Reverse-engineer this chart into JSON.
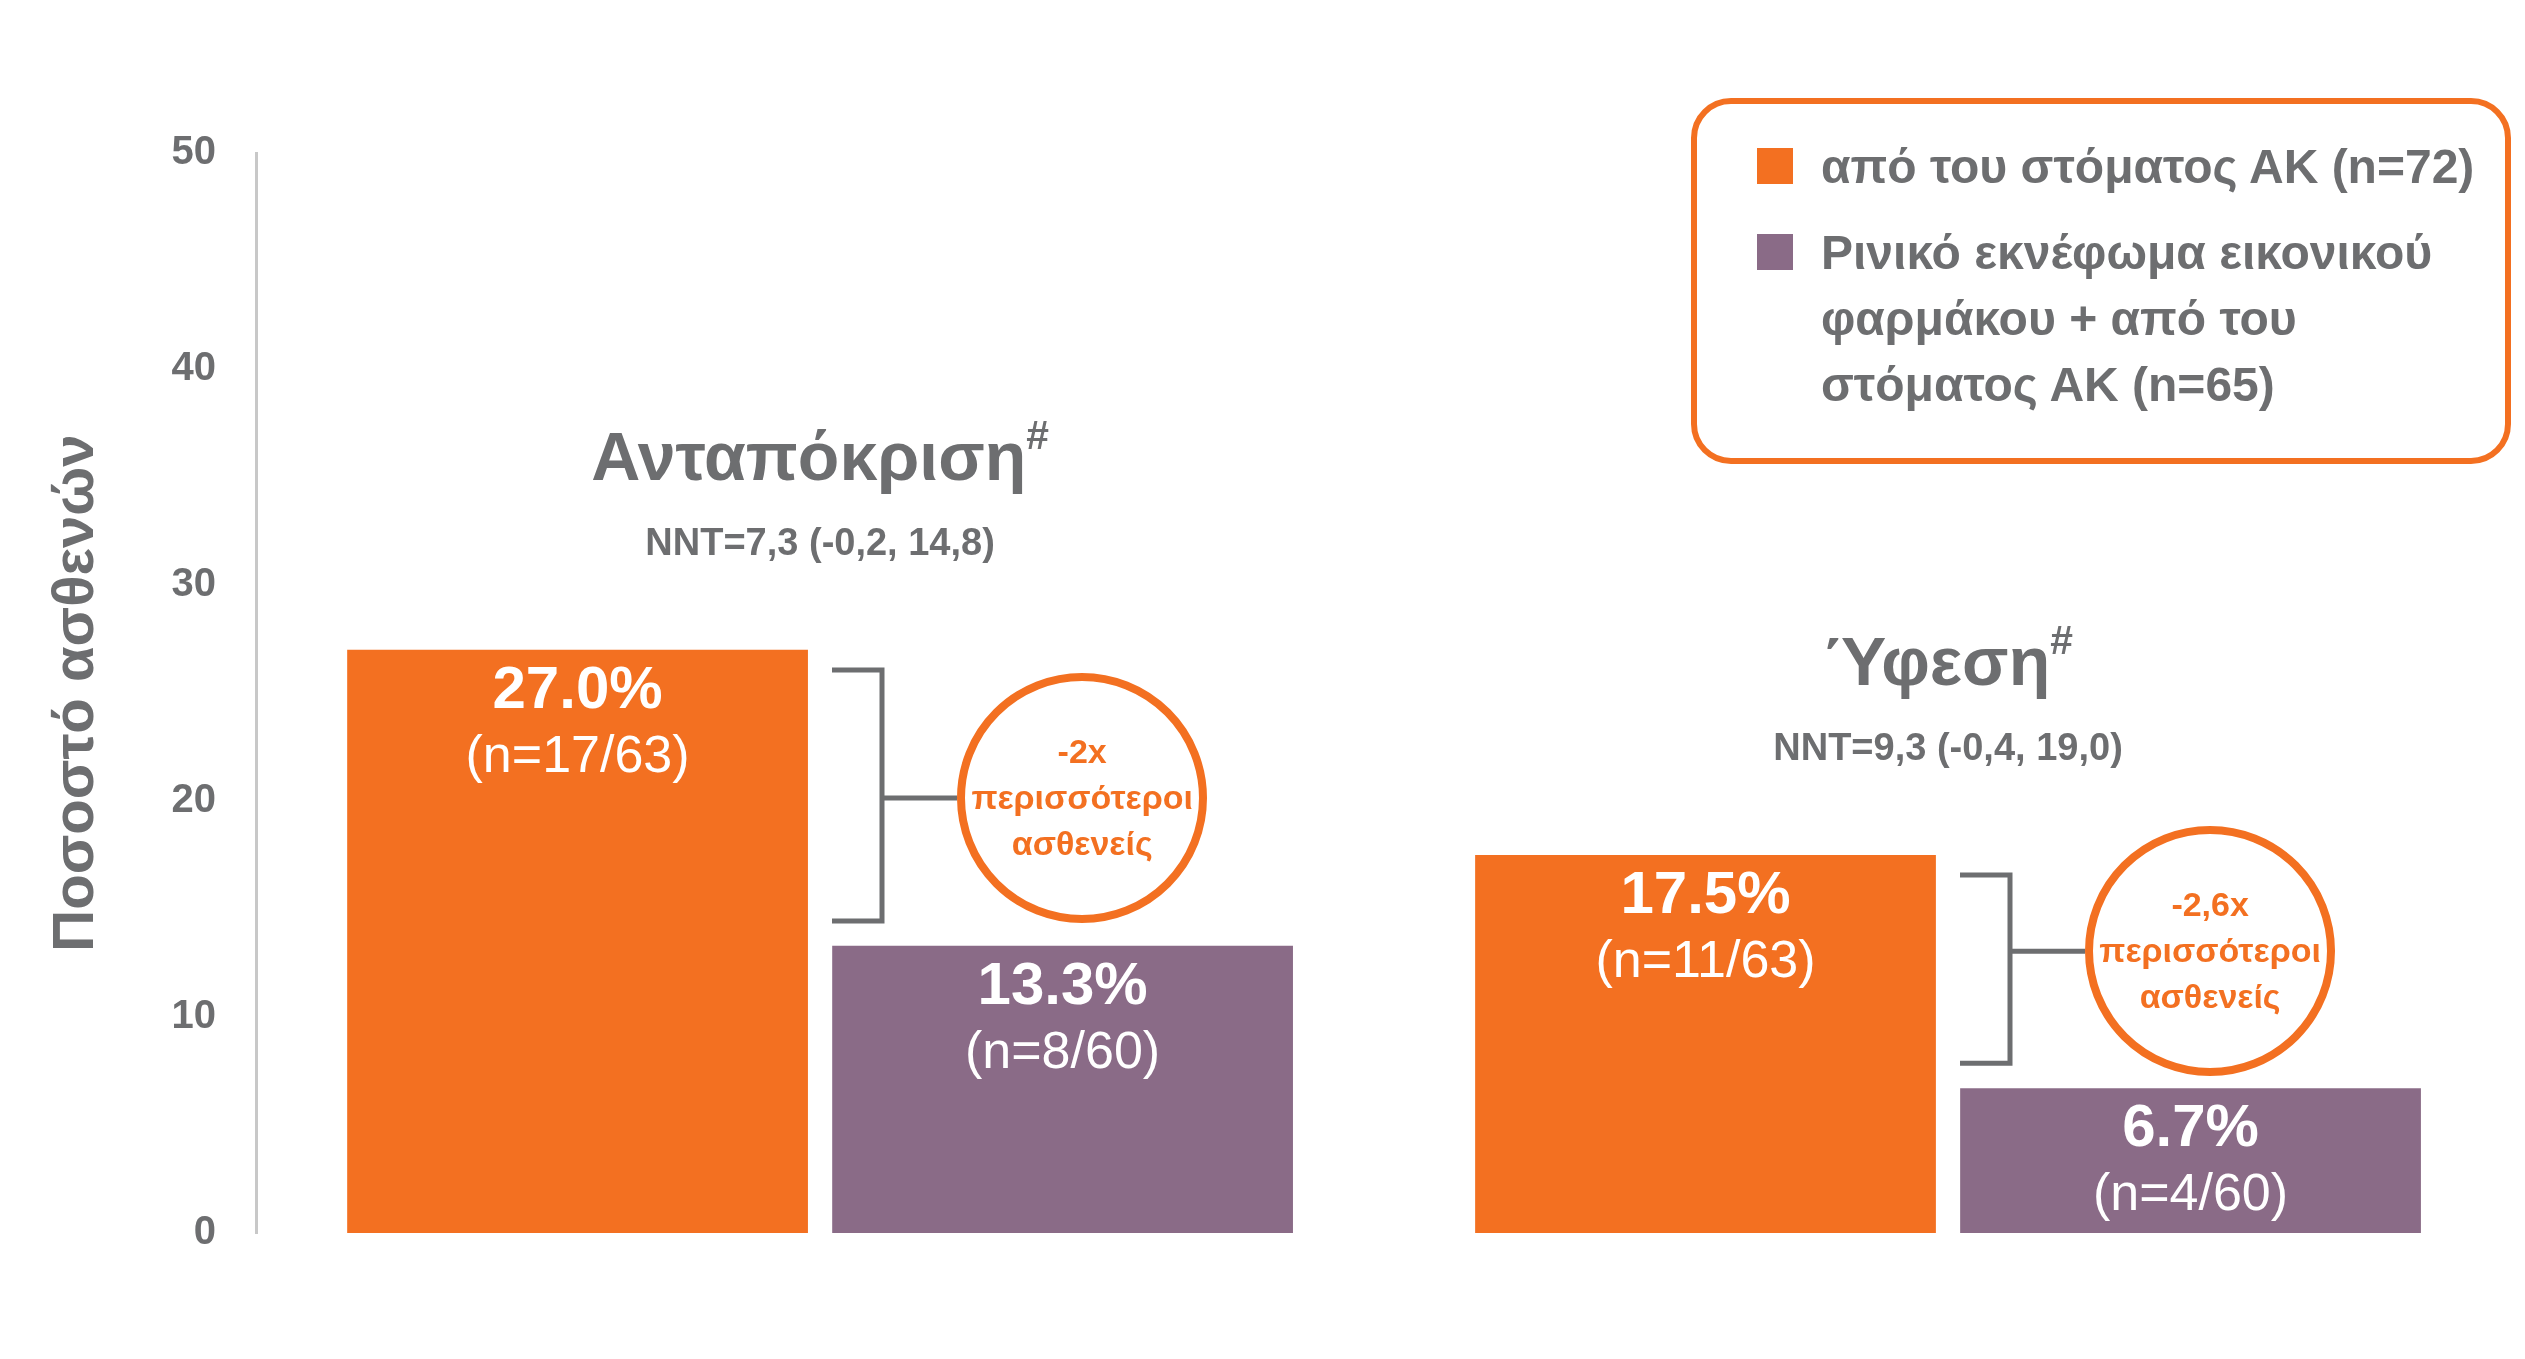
{
  "chart_data": {
    "type": "bar",
    "categories": [
      "Ανταπόκριση$^{#}$",
      "Ύφεση$^{#}$"
    ],
    "series": [
      {
        "name": "από του στόματος ΑΚ (n=72)",
        "color": "#f37021",
        "values": [
          27.0,
          17.5
        ],
        "value_labels": [
          "27.0%\n(n=17/63)",
          "17.5%\n(n=11/63)"
        ]
      },
      {
        "name": "Ρινικό εκνέφωμα εικονικού φαρμάκου + από του στόματος ΑΚ (n=65)",
        "color": "#8a6b87",
        "values": [
          13.3,
          6.7
        ],
        "value_labels": [
          "13.3%\n(n=8/60)",
          "6.7%\n(n=4/60)"
        ]
      }
    ],
    "ylabel": "Ποσοστό ασθενών",
    "ylim": [
      0,
      50
    ],
    "yticks": [
      0,
      10,
      20,
      30,
      40,
      50
    ],
    "grid": false,
    "legend": "top right",
    "annotations": [
      "NNT=7,3 (-0,2, 14,8)",
      "NNT=9,3 (-0,4, 19,0)",
      "-2x περισσότεροι ασθενείς",
      "-2,6x περισσότεροι ασθενείς"
    ]
  }
}
